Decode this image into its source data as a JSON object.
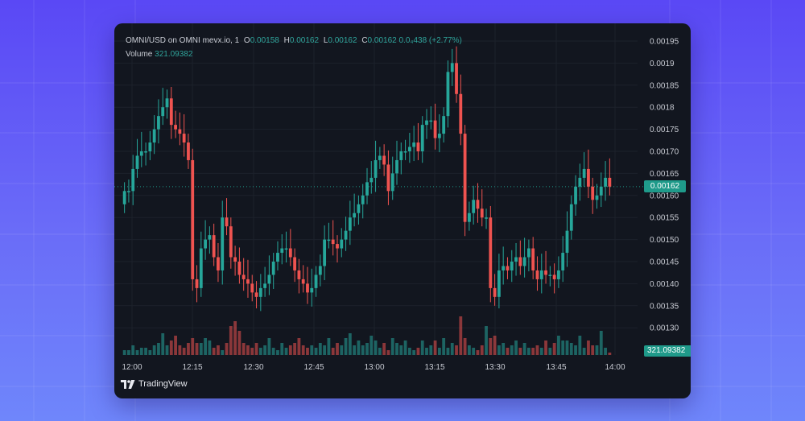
{
  "legend": {
    "symbol": "OMNI/USD on OMNI mevx.io, 1",
    "o_label": "O",
    "o_value": "0.00158",
    "h_label": "H",
    "h_value": "0.00162",
    "l_label": "L",
    "l_value": "0.00162",
    "c_label": "C",
    "c_value": "0.00162",
    "change": "0.0₄438 (+2.77%)",
    "volume_label": "Volume",
    "volume_value": "321.09382"
  },
  "price_badge": "0.00162",
  "volume_badge": "321.09382",
  "brand": {
    "name": "TradingView",
    "logo_icon": "tradingview-logo-icon"
  },
  "colors": {
    "up": "#26a69a",
    "down": "#ef5350",
    "badge": "#1f9a8a",
    "background": "#12161f"
  },
  "chart_data": {
    "type": "candlestick",
    "title": "OMNI/USD on OMNI mevx.io, 1",
    "interval": "1 minute",
    "x_ticks": [
      "12:00",
      "12:15",
      "12:30",
      "12:45",
      "13:00",
      "13:15",
      "13:30",
      "13:45",
      "14:00"
    ],
    "y_ticks": [
      "0.00130",
      "0.00135",
      "0.00140",
      "0.00145",
      "0.00150",
      "0.00155",
      "0.00160",
      "0.00165",
      "0.00170",
      "0.00175",
      "0.0018",
      "0.00185",
      "0.0019",
      "0.00195"
    ],
    "ylim": [
      0.00126,
      0.00197
    ],
    "grid": true,
    "current_price": 0.00162,
    "current_volume": 321.09382,
    "close_series": [
      0.00161,
      0.00161,
      0.00166,
      0.00169,
      0.0017,
      0.0017,
      0.00172,
      0.00175,
      0.00178,
      0.0018,
      0.00182,
      0.00176,
      0.00175,
      0.00174,
      0.00172,
      0.00168,
      0.00141,
      0.00139,
      0.00148,
      0.0015,
      0.00151,
      0.00146,
      0.00143,
      0.00155,
      0.00153,
      0.00146,
      0.00145,
      0.00142,
      0.00141,
      0.0014,
      0.00138,
      0.00137,
      0.00139,
      0.0014,
      0.00142,
      0.00145,
      0.00147,
      0.00148,
      0.00148,
      0.00146,
      0.00143,
      0.00141,
      0.0014,
      0.00138,
      0.00139,
      0.00142,
      0.00144,
      0.0015,
      0.0015,
      0.00149,
      0.00148,
      0.0015,
      0.00152,
      0.00155,
      0.00156,
      0.00158,
      0.0016,
      0.00163,
      0.00164,
      0.00168,
      0.00169,
      0.00167,
      0.00161,
      0.00165,
      0.00168,
      0.0017,
      0.0017,
      0.00171,
      0.00172,
      0.0017,
      0.00176,
      0.00177,
      0.00177,
      0.00173,
      0.00174,
      0.00178,
      0.00188,
      0.0019,
      0.00183,
      0.00174,
      0.00154,
      0.00156,
      0.00159,
      0.00157,
      0.00155,
      0.00155,
      0.00139,
      0.00137,
      0.00143,
      0.00144,
      0.00143,
      0.00145,
      0.00146,
      0.00144,
      0.00146,
      0.00148,
      0.00143,
      0.00141,
      0.00143,
      0.00142,
      0.00142,
      0.00141,
      0.00143,
      0.00147,
      0.00152,
      0.00158,
      0.00162,
      0.00164,
      0.00166,
      0.00162,
      0.00159,
      0.0016,
      0.00162,
      0.00164,
      0.00162
    ],
    "volume_series": [
      2,
      2,
      4,
      2,
      3,
      3,
      2,
      4,
      5,
      9,
      4,
      6,
      8,
      4,
      3,
      5,
      7,
      5,
      5,
      7,
      6,
      3,
      4,
      2,
      5,
      12,
      14,
      10,
      5,
      4,
      3,
      5,
      3,
      4,
      7,
      3,
      2,
      5,
      3,
      4,
      5,
      7,
      4,
      3,
      4,
      3,
      5,
      4,
      7,
      3,
      5,
      4,
      7,
      9,
      4,
      6,
      4,
      5,
      8,
      6,
      3,
      5,
      2,
      7,
      5,
      4,
      6,
      3,
      2,
      3,
      6,
      3,
      4,
      6,
      3,
      7,
      3,
      5,
      4,
      16,
      7,
      4,
      3,
      2,
      4,
      12,
      7,
      8,
      4,
      5,
      3,
      4,
      6,
      3,
      5,
      3,
      3,
      4,
      3,
      6,
      3,
      5,
      8,
      6,
      6,
      5,
      4,
      8,
      3,
      6,
      4,
      4,
      10,
      3,
      1
    ]
  }
}
